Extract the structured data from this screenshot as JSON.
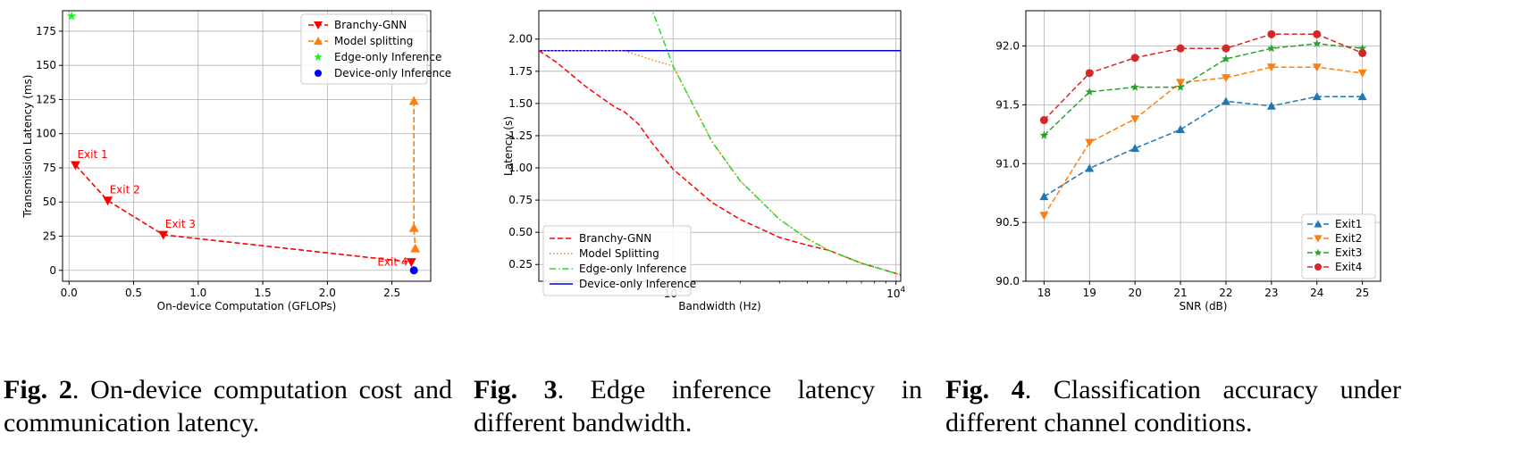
{
  "chart_data": [
    {
      "type": "scatter",
      "xlabel": "On-device Computation (GFLOPs)",
      "ylabel": "Transmission Latency (ms)",
      "xlim": [
        -0.05,
        2.8
      ],
      "ylim": [
        -8,
        190
      ],
      "xticks": [
        "0.0",
        "0.5",
        "1.0",
        "1.5",
        "2.0",
        "2.5"
      ],
      "yticks": [
        "0",
        "25",
        "50",
        "75",
        "100",
        "125",
        "150",
        "175"
      ],
      "grid": true,
      "legend_position": "top-right",
      "series": [
        {
          "name": "Branchy-GNN",
          "color": "#ff0000",
          "marker": "triangle-down",
          "dashed": true,
          "x": [
            0.05,
            0.3,
            0.73,
            2.65
          ],
          "y": [
            77,
            51,
            26,
            6
          ]
        },
        {
          "name": "Model splitting",
          "color": "#ff7f0e",
          "marker": "triangle-up",
          "dashed": true,
          "x": [
            2.67,
            2.67,
            2.68
          ],
          "y": [
            124,
            31,
            16
          ]
        },
        {
          "name": "Edge-only Inference",
          "color": "#22ee22",
          "marker": "star",
          "dashed": false,
          "x": [
            0.02
          ],
          "y": [
            186
          ]
        },
        {
          "name": "Device-only Inference",
          "color": "#0000ff",
          "marker": "circle",
          "dashed": false,
          "x": [
            2.67
          ],
          "y": [
            0
          ]
        }
      ],
      "annotations": [
        {
          "text": "Exit 1",
          "x": 0.05,
          "y": 77
        },
        {
          "text": "Exit 2",
          "x": 0.3,
          "y": 51
        },
        {
          "text": "Exit 3",
          "x": 0.73,
          "y": 26
        },
        {
          "text": "Exit 4",
          "x": 2.65,
          "y": 6
        }
      ]
    },
    {
      "type": "line",
      "xlabel": "Bandwidth (Hz)",
      "ylabel": "Latency (s)",
      "xscale": "log",
      "xlim": [
        250,
        10500
      ],
      "ylim": [
        0.12,
        2.22
      ],
      "xticks": [
        "10^3",
        "10^4"
      ],
      "yticks": [
        "0.25",
        "0.50",
        "0.75",
        "1.00",
        "1.25",
        "1.50",
        "1.75",
        "2.00"
      ],
      "grid": true,
      "legend_position": "bottom-left",
      "series": [
        {
          "name": "Branchy-GNN",
          "color": "#ff0000",
          "style": "dashed",
          "x": [
            250,
            300,
            400,
            500,
            550,
            600,
            700,
            800,
            1000,
            1500,
            2000,
            3000,
            4000,
            5000,
            7000,
            10500
          ],
          "y": [
            1.91,
            1.82,
            1.64,
            1.52,
            1.47,
            1.44,
            1.34,
            1.2,
            0.99,
            0.73,
            0.6,
            0.46,
            0.4,
            0.36,
            0.26,
            0.17
          ]
        },
        {
          "name": "Model Splitting",
          "color": "#ff7f0e",
          "style": "dotted",
          "x": [
            250,
            400,
            600,
            800,
            1000,
            1500,
            2000,
            3000,
            4000,
            5000,
            7000,
            10500
          ],
          "y": [
            1.91,
            1.91,
            1.91,
            1.84,
            1.79,
            1.2,
            0.9,
            0.6,
            0.45,
            0.36,
            0.26,
            0.17
          ]
        },
        {
          "name": "Edge-only Inference",
          "color": "#22dd22",
          "style": "dashdot",
          "x": [
            700,
            800,
            1000,
            1500,
            2000,
            3000,
            4000,
            5000,
            7000,
            10500
          ],
          "y": [
            2.56,
            2.24,
            1.79,
            1.2,
            0.9,
            0.6,
            0.45,
            0.36,
            0.26,
            0.17
          ]
        },
        {
          "name": "Device-only Inference",
          "color": "#0000dd",
          "style": "solid",
          "x": [
            250,
            10500
          ],
          "y": [
            1.91,
            1.91
          ]
        }
      ]
    },
    {
      "type": "line",
      "xlabel": "SNR (dB)",
      "ylabel": "Accuracy (%)",
      "xlim": [
        17.6,
        25.4
      ],
      "ylim": [
        90.0,
        92.3
      ],
      "xticks": [
        "18",
        "19",
        "20",
        "21",
        "22",
        "23",
        "24",
        "25"
      ],
      "yticks": [
        "90.0",
        "90.5",
        "91.0",
        "91.5",
        "92.0"
      ],
      "grid": true,
      "legend_position": "bottom-right",
      "categories": [
        18,
        19,
        20,
        21,
        22,
        23,
        24,
        25
      ],
      "series": [
        {
          "name": "Exit1",
          "color": "#1f77b4",
          "marker": "triangle-up",
          "values": [
            90.72,
            90.96,
            91.13,
            91.29,
            91.53,
            91.49,
            91.57,
            91.57
          ]
        },
        {
          "name": "Exit2",
          "color": "#ff7f0e",
          "marker": "triangle-down",
          "values": [
            90.56,
            91.18,
            91.38,
            91.69,
            91.73,
            91.82,
            91.82,
            91.77
          ]
        },
        {
          "name": "Exit3",
          "color": "#2ca02c",
          "marker": "star",
          "values": [
            91.24,
            91.61,
            91.65,
            91.65,
            91.89,
            91.98,
            92.02,
            91.98
          ]
        },
        {
          "name": "Exit4",
          "color": "#d62728",
          "marker": "circle",
          "values": [
            91.37,
            91.77,
            91.9,
            91.98,
            91.98,
            92.1,
            92.1,
            91.94
          ]
        }
      ]
    }
  ],
  "captions": [
    {
      "label": "Fig. 2",
      "text": ". On-device computation cost and communication latency."
    },
    {
      "label": "Fig. 3",
      "text": ". Edge inference latency in different bandwidth."
    },
    {
      "label": "Fig. 4",
      "text": ". Classification accuracy under different channel conditions."
    }
  ]
}
